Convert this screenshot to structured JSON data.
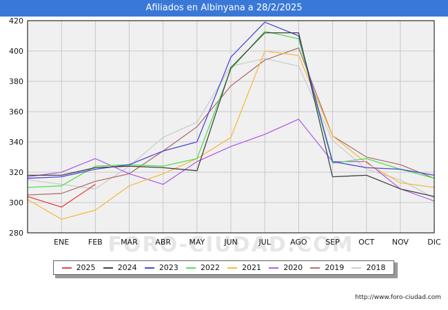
{
  "title": "Afiliados en Albinyana a 28/2/2025",
  "footer_url": "http://www.foro-ciudad.com",
  "watermark": "FORO-CIUDAD.COM",
  "chart_data": {
    "type": "line",
    "title": "Afiliados en Albinyana a 28/2/2025",
    "x": [
      "",
      "ENE",
      "FEB",
      "MAR",
      "ABR",
      "MAY",
      "JUN",
      "JUL",
      "AGO",
      "SEP",
      "OCT",
      "NOV",
      "DIC"
    ],
    "ylim": [
      280,
      420
    ],
    "yticks": [
      280,
      300,
      320,
      340,
      360,
      380,
      400,
      420
    ],
    "grid": true,
    "legend_position": "bottom",
    "series": [
      {
        "name": "2025",
        "color": "#e84040",
        "values": [
          304,
          297,
          312,
          null,
          null,
          null,
          null,
          null,
          null,
          null,
          null,
          null,
          null
        ]
      },
      {
        "name": "2024",
        "color": "#404040",
        "values": [
          318,
          318,
          323,
          324,
          323,
          321,
          389,
          412,
          412,
          317,
          318,
          309,
          304
        ]
      },
      {
        "name": "2023",
        "color": "#4848d8",
        "values": [
          316,
          317,
          322,
          325,
          334,
          340,
          396,
          419,
          410,
          327,
          323,
          322,
          318
        ]
      },
      {
        "name": "2022",
        "color": "#50e050",
        "values": [
          310,
          311,
          324,
          325,
          324,
          329,
          388,
          413,
          408,
          326,
          329,
          322,
          316
        ]
      },
      {
        "name": "2021",
        "color": "#f8b840",
        "values": [
          302,
          289,
          295,
          311,
          319,
          329,
          343,
          400,
          397,
          344,
          326,
          313,
          310
        ]
      },
      {
        "name": "2020",
        "color": "#b060e8",
        "values": [
          317,
          320,
          329,
          319,
          312,
          327,
          337,
          345,
          355,
          327,
          327,
          309,
          301
        ]
      },
      {
        "name": "2019",
        "color": "#b07070",
        "values": [
          305,
          306,
          314,
          319,
          334,
          350,
          377,
          394,
          402,
          344,
          330,
          325,
          316
        ]
      },
      {
        "name": "2018",
        "color": "#cccccc",
        "values": [
          315,
          312,
          309,
          324,
          343,
          353,
          390,
          395,
          390,
          341,
          322,
          315,
          303
        ]
      }
    ]
  }
}
